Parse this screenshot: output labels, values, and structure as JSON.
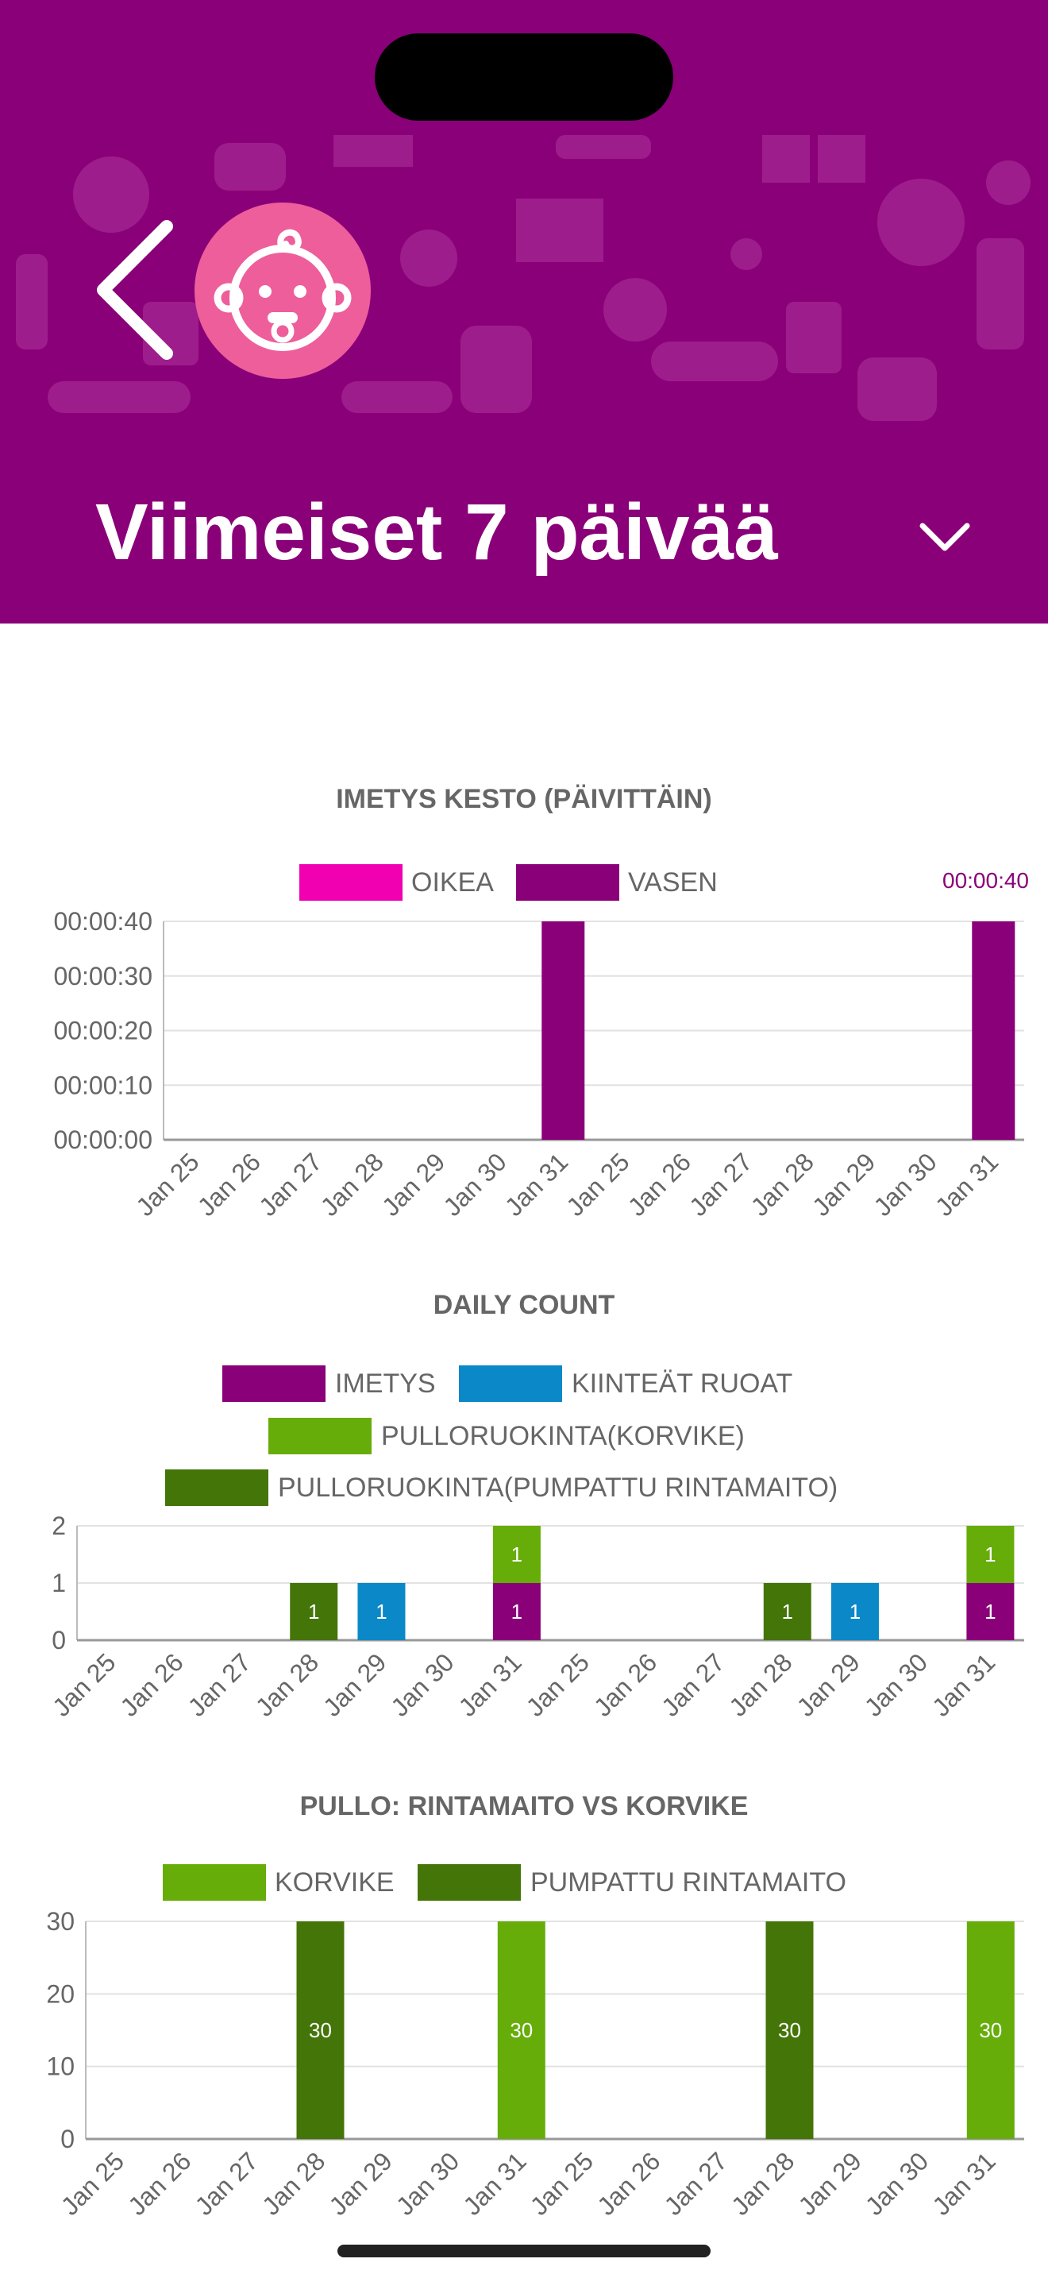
{
  "header": {
    "title": "Viimeiset 7 päivää",
    "background_color": "#8a0078",
    "avatar_color": "#ee5e9b",
    "back_icon": "chevron-left-icon",
    "avatar_icon": "baby-face-icon",
    "period_icon": "chevron-down-icon"
  },
  "charts": {
    "imetys": {
      "title": "IMETYS KESTO (PÄIVITTÄIN)",
      "legend": [
        {
          "label": "OIKEA",
          "color": "#f000b0"
        },
        {
          "label": "VASEN",
          "color": "#8a0078"
        }
      ],
      "peak_label": "00:00:40"
    },
    "daily": {
      "title": "DAILY COUNT",
      "legend": [
        {
          "label": "IMETYS",
          "color": "#8a0078"
        },
        {
          "label": "KIINTEÄT RUOAT",
          "color": "#0a88c8"
        },
        {
          "label": "PULLORUOKINTA(KORVIKE)",
          "color": "#66ad0a"
        },
        {
          "label": "PULLORUOKINTA(PUMPATTU RINTAMAITO)",
          "color": "#447508"
        }
      ]
    },
    "pullo": {
      "title": "PULLO: RINTAMAITO VS KORVIKE",
      "legend": [
        {
          "label": "KORVIKE",
          "color": "#66ad0a"
        },
        {
          "label": "PUMPATTU RINTAMAITO",
          "color": "#447508"
        }
      ]
    }
  },
  "chart_data": [
    {
      "type": "bar",
      "title": "IMETYS KESTO (PÄIVITTÄIN)",
      "categories": [
        "Jan 25",
        "Jan 26",
        "Jan 27",
        "Jan 28",
        "Jan 29",
        "Jan 30",
        "Jan 31",
        "Jan 25",
        "Jan 26",
        "Jan 27",
        "Jan 28",
        "Jan 29",
        "Jan 30",
        "Jan 31"
      ],
      "series": [
        {
          "name": "OIKEA",
          "values": [
            0,
            0,
            0,
            0,
            0,
            0,
            0,
            0,
            0,
            0,
            0,
            0,
            0,
            0
          ],
          "color": "#f000b0"
        },
        {
          "name": "VASEN",
          "values": [
            0,
            0,
            0,
            0,
            0,
            0,
            40,
            0,
            0,
            0,
            0,
            0,
            0,
            40
          ],
          "color": "#8a0078"
        }
      ],
      "y_ticks": [
        "00:00:00",
        "00:00:10",
        "00:00:20",
        "00:00:30",
        "00:00:40"
      ],
      "ylim": [
        0,
        40
      ],
      "grid": true,
      "legend_position": "top"
    },
    {
      "type": "bar",
      "stacked": true,
      "title": "DAILY COUNT",
      "categories": [
        "Jan 25",
        "Jan 26",
        "Jan 27",
        "Jan 28",
        "Jan 29",
        "Jan 30",
        "Jan 31",
        "Jan 25",
        "Jan 26",
        "Jan 27",
        "Jan 28",
        "Jan 29",
        "Jan 30",
        "Jan 31"
      ],
      "series": [
        {
          "name": "IMETYS",
          "values": [
            0,
            0,
            0,
            0,
            0,
            0,
            1,
            0,
            0,
            0,
            0,
            0,
            0,
            1
          ],
          "color": "#8a0078"
        },
        {
          "name": "KIINTEÄT RUOAT",
          "values": [
            0,
            0,
            0,
            0,
            1,
            0,
            0,
            0,
            0,
            0,
            0,
            1,
            0,
            0
          ],
          "color": "#0a88c8"
        },
        {
          "name": "PULLORUOKINTA(KORVIKE)",
          "values": [
            0,
            0,
            0,
            0,
            0,
            0,
            1,
            0,
            0,
            0,
            0,
            0,
            0,
            1
          ],
          "color": "#66ad0a"
        },
        {
          "name": "PULLORUOKINTA(PUMPATTU RINTAMAITO)",
          "values": [
            0,
            0,
            0,
            1,
            0,
            0,
            0,
            0,
            0,
            0,
            1,
            0,
            0,
            0
          ],
          "color": "#447508"
        }
      ],
      "y_ticks": [
        "0",
        "1",
        "2"
      ],
      "ylim": [
        0,
        2
      ],
      "grid": true,
      "legend_position": "top"
    },
    {
      "type": "bar",
      "title": "PULLO: RINTAMAITO VS KORVIKE",
      "categories": [
        "Jan 25",
        "Jan 26",
        "Jan 27",
        "Jan 28",
        "Jan 29",
        "Jan 30",
        "Jan 31",
        "Jan 25",
        "Jan 26",
        "Jan 27",
        "Jan 28",
        "Jan 29",
        "Jan 30",
        "Jan 31"
      ],
      "series": [
        {
          "name": "KORVIKE",
          "values": [
            0,
            0,
            0,
            0,
            0,
            0,
            30,
            0,
            0,
            0,
            0,
            0,
            0,
            30
          ],
          "color": "#66ad0a"
        },
        {
          "name": "PUMPATTU RINTAMAITO",
          "values": [
            0,
            0,
            0,
            30,
            0,
            0,
            0,
            0,
            0,
            0,
            30,
            0,
            0,
            0
          ],
          "color": "#447508"
        }
      ],
      "y_ticks": [
        "0",
        "10",
        "20",
        "30"
      ],
      "ylim": [
        0,
        30
      ],
      "grid": true,
      "legend_position": "top"
    }
  ]
}
